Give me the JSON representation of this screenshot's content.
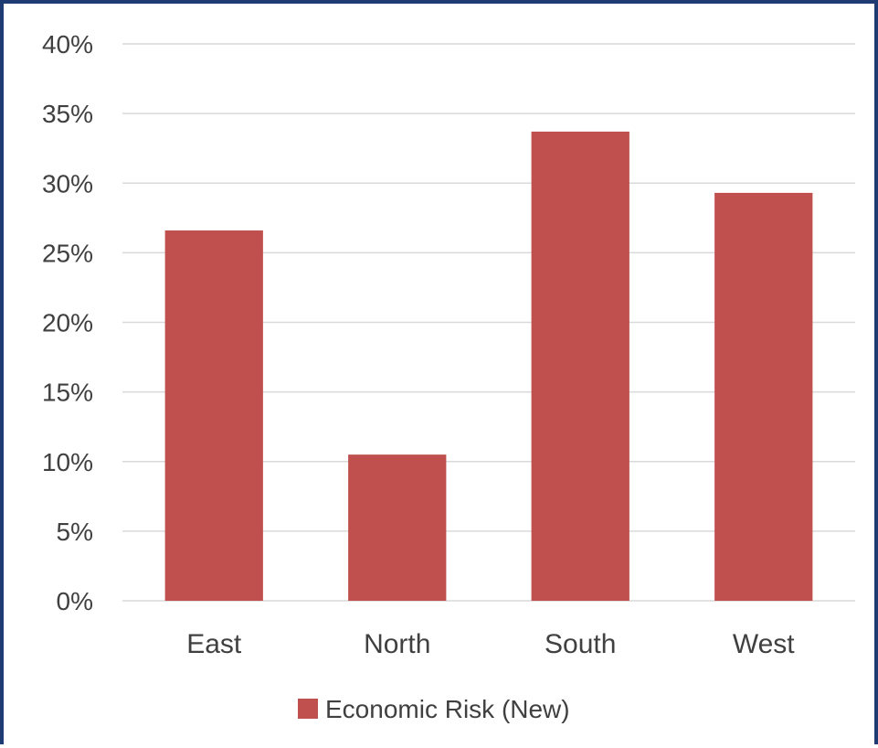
{
  "chart_data": {
    "type": "bar",
    "categories": [
      "East",
      "North",
      "South",
      "West"
    ],
    "series": [
      {
        "name": "Economic Risk (New)",
        "values": [
          26.6,
          10.5,
          33.7,
          29.3
        ],
        "color": "#c0504d"
      }
    ],
    "ylim": [
      0,
      40
    ],
    "y_ticks": [
      "0%",
      "5%",
      "10%",
      "15%",
      "20%",
      "25%",
      "30%",
      "35%",
      "40%"
    ],
    "grid": true,
    "legend_position": "bottom"
  },
  "colors": {
    "frame": "#1f3b73",
    "grid": "#d9d9d9",
    "text": "#404040"
  }
}
